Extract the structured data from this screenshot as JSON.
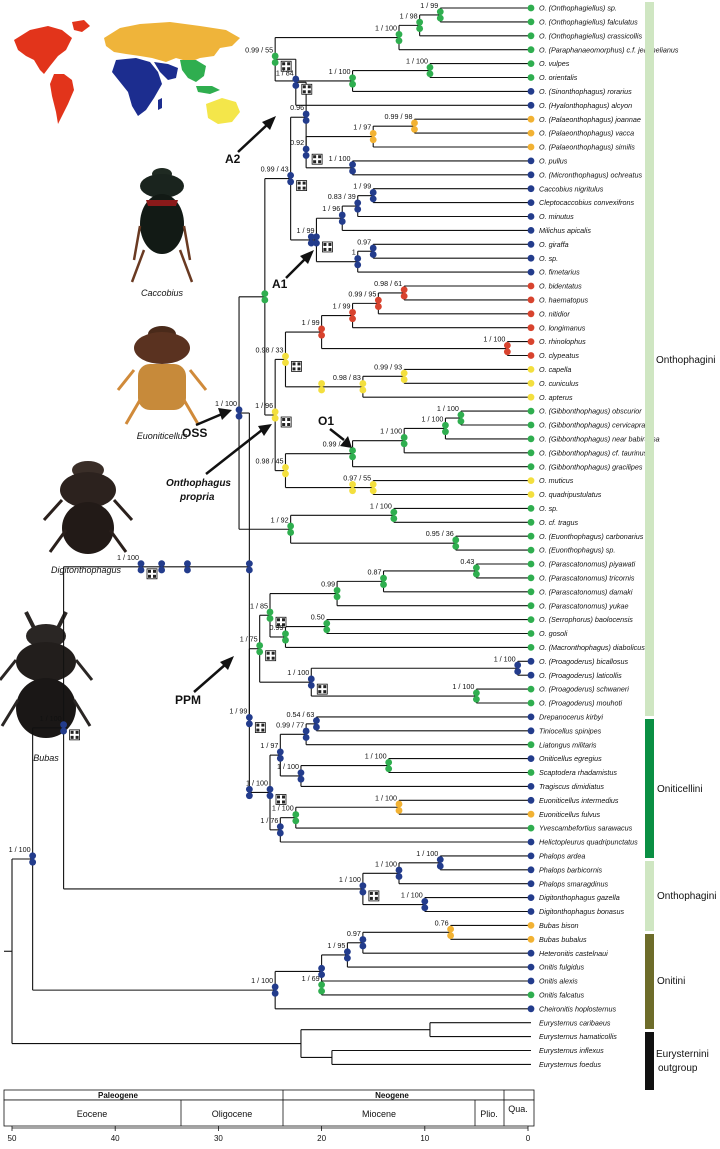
{
  "colors": {
    "blue": "#233c8c",
    "green": "#2fae4f",
    "red": "#d8432e",
    "yellow": "#f3df3e",
    "orange": "#f2b233",
    "onthophagini": "#cfe6c2",
    "oniticellini": "#0a8f43",
    "onitini": "#6d6c2a",
    "outgroup": "#111111",
    "map_red": "#e2341b",
    "map_orange": "#efb43a",
    "map_blue": "#1c2d8f",
    "map_yellow": "#f4e64a"
  },
  "taxa": [
    {
      "name": "O. (Onthophagiellus) sp.",
      "c": "green"
    },
    {
      "name": "O. (Onthophagiellus) falculatus",
      "c": "green"
    },
    {
      "name": "O. (Onthophagiellus) crassicollis",
      "c": "green"
    },
    {
      "name": "O. (Paraphanaeomorphus) c.f. jeannelianus",
      "c": "green"
    },
    {
      "name": "O. vulpes",
      "c": "green"
    },
    {
      "name": "O. orientalis",
      "c": "green"
    },
    {
      "name": "O. (Sinonthophagus) rorarius",
      "c": "blue"
    },
    {
      "name": "O. (Hyalonthophagus) alcyon",
      "c": "blue"
    },
    {
      "name": "O. (Palaeonthophagus) joannae",
      "c": "orange"
    },
    {
      "name": "O. (Palaeonthophagus) vacca",
      "c": "orange"
    },
    {
      "name": "O. (Palaeonthophagus) similis",
      "c": "orange"
    },
    {
      "name": "O. pullus",
      "c": "blue"
    },
    {
      "name": "O. (Micronthophagus) ochreatus",
      "c": "blue"
    },
    {
      "name": "Caccobius nigritulus",
      "c": "blue"
    },
    {
      "name": "Cleptocaccobius convexifrons",
      "c": "blue"
    },
    {
      "name": "O. minutus",
      "c": "blue"
    },
    {
      "name": "Milichus apicalis",
      "c": "blue"
    },
    {
      "name": "O. giraffa",
      "c": "blue"
    },
    {
      "name": "O. sp.",
      "c": "blue"
    },
    {
      "name": "O. fimetarius",
      "c": "blue"
    },
    {
      "name": "O. bidentatus",
      "c": "red"
    },
    {
      "name": "O. haematopus",
      "c": "red"
    },
    {
      "name": "O. nitidior",
      "c": "red"
    },
    {
      "name": "O. longimanus",
      "c": "red"
    },
    {
      "name": "O. rhinolophus",
      "c": "red"
    },
    {
      "name": "O. clypeatus",
      "c": "red"
    },
    {
      "name": "O. capella",
      "c": "yellow"
    },
    {
      "name": "O. cuniculus",
      "c": "yellow"
    },
    {
      "name": "O. apterus",
      "c": "yellow"
    },
    {
      "name": "O. (Gibbonthophagus) obscurior",
      "c": "green"
    },
    {
      "name": "O. (Gibbonthophagus) cervicapra",
      "c": "green"
    },
    {
      "name": "O. (Gibbonthophagus) near babirussa",
      "c": "green"
    },
    {
      "name": "O. (Gibbonthophagus) cf. taurinus",
      "c": "green"
    },
    {
      "name": "O. (Gibbonthophagus) gracilipes",
      "c": "green"
    },
    {
      "name": "O. muticus",
      "c": "yellow"
    },
    {
      "name": "O. quadripustulatus",
      "c": "yellow"
    },
    {
      "name": "O. sp.",
      "c": "green"
    },
    {
      "name": "O. cf. tragus",
      "c": "green"
    },
    {
      "name": "O. (Euonthophagus) carbonarius",
      "c": "green"
    },
    {
      "name": "O. (Euonthophagus) sp.",
      "c": "green"
    },
    {
      "name": "O. (Parascatonomus) piyawati",
      "c": "green"
    },
    {
      "name": "O. (Parascatonomus) tricornis",
      "c": "green"
    },
    {
      "name": "O. (Parascatonomus) damaki",
      "c": "green"
    },
    {
      "name": "O. (Parascatonomus) yukae",
      "c": "green"
    },
    {
      "name": "O. (Serrophorus) baolocensis",
      "c": "green"
    },
    {
      "name": "O. gosoli",
      "c": "green"
    },
    {
      "name": "O. (Macronthophagus) diabolicus",
      "c": "green"
    },
    {
      "name": "O. (Proagoderus) bicallosus",
      "c": "blue"
    },
    {
      "name": "O. (Proagoderus) laticollis",
      "c": "blue"
    },
    {
      "name": "O. (Proagoderus) schwaneri",
      "c": "green"
    },
    {
      "name": "O. (Proagoderus) mouhoti",
      "c": "green"
    },
    {
      "name": "Drepanocerus kirbyi",
      "c": "blue"
    },
    {
      "name": "Tiniocellus spinipes",
      "c": "blue"
    },
    {
      "name": "Liatongus militaris",
      "c": "green"
    },
    {
      "name": "Oniticellus egregius",
      "c": "blue"
    },
    {
      "name": "Scaptodera rhadamistus",
      "c": "green"
    },
    {
      "name": "Tragiscus dimidiatus",
      "c": "blue"
    },
    {
      "name": "Euoniticellus intermedius",
      "c": "blue"
    },
    {
      "name": "Euoniticellus fulvus",
      "c": "orange"
    },
    {
      "name": "Yvescambefortius sarawacus",
      "c": "green"
    },
    {
      "name": "Helictopleurus quadripunctatus",
      "c": "blue"
    },
    {
      "name": "Phalops ardea",
      "c": "blue"
    },
    {
      "name": "Phalops barbicornis",
      "c": "blue"
    },
    {
      "name": "Phalops smaragdinus",
      "c": "blue"
    },
    {
      "name": "Digitonthophagus gazella",
      "c": "blue"
    },
    {
      "name": "Digitonthophagus bonasus",
      "c": "blue"
    },
    {
      "name": "Bubas bison",
      "c": "orange"
    },
    {
      "name": "Bubas bubalus",
      "c": "orange"
    },
    {
      "name": "Heteronitis castelnaui",
      "c": "blue"
    },
    {
      "name": "Onitis fulgidus",
      "c": "blue"
    },
    {
      "name": "Onitis alexis",
      "c": "blue"
    },
    {
      "name": "Onitis falcatus",
      "c": "green"
    },
    {
      "name": "Cheironitis hoplosternus",
      "c": "blue"
    },
    {
      "name": "Eurysternus caribaeus",
      "c": "none"
    },
    {
      "name": "Eurysternus hamaticollis",
      "c": "none"
    },
    {
      "name": "Eurysternus inflexus",
      "c": "none"
    },
    {
      "name": "Eurysternus foedus",
      "c": "none"
    }
  ],
  "supports": [
    {
      "t": "1 / 99"
    },
    {
      "t": "1 / 98"
    },
    {
      "t": "1 / 100"
    },
    {
      "t": "1 / 100"
    },
    {
      "t": "1 / 100"
    },
    {
      "t": "0.99 / 55"
    },
    {
      "t": "1 / 84"
    },
    {
      "t": "0.96"
    },
    {
      "t": "0.99 / 98"
    },
    {
      "t": "1 / 97"
    },
    {
      "t": "0.92"
    },
    {
      "t": "1 / 100"
    },
    {
      "t": "0.99 / 43"
    },
    {
      "t": "1 / 99"
    },
    {
      "t": "0.83 / 39"
    },
    {
      "t": "1 / 96"
    },
    {
      "t": "1 / 99"
    },
    {
      "t": "0.97"
    },
    {
      "t": "1"
    },
    {
      "t": "0.98 / 61"
    },
    {
      "t": "0.99 / 95"
    },
    {
      "t": "1 / 99"
    },
    {
      "t": "1 / 99"
    },
    {
      "t": "1 / 100"
    },
    {
      "t": "0.98 / 33"
    },
    {
      "t": "0.99 / 93"
    },
    {
      "t": "0.98 / 83"
    },
    {
      "t": "1 / 69"
    },
    {
      "t": "1 / 100"
    },
    {
      "t": "1 / 100"
    },
    {
      "t": "1 / 100"
    },
    {
      "t": "0.99 / 95"
    },
    {
      "t": "0.98 / 45"
    },
    {
      "t": "0.97 / 55"
    },
    {
      "t": "1 / 96"
    },
    {
      "t": "1 / 100"
    },
    {
      "t": "1 / 92"
    },
    {
      "t": "0.95 / 36"
    },
    {
      "t": "0.43"
    },
    {
      "t": "0.87"
    },
    {
      "t": "0.99"
    },
    {
      "t": "1 / 85"
    },
    {
      "t": "0.50"
    },
    {
      "t": "0.99"
    },
    {
      "t": "1 / 75"
    },
    {
      "t": "1 / 100"
    },
    {
      "t": "1 / 100"
    },
    {
      "t": "1 / 100"
    },
    {
      "t": "1 / 99"
    },
    {
      "t": "1 / 100"
    },
    {
      "t": "0.54 / 63"
    },
    {
      "t": "0.99 / 77"
    },
    {
      "t": "1 / 97"
    },
    {
      "t": "1 / 100"
    },
    {
      "t": "1 / 100"
    },
    {
      "t": "1 / 100"
    },
    {
      "t": "1 / 100"
    },
    {
      "t": "1 / 100"
    },
    {
      "t": "1 / 76"
    },
    {
      "t": "1 / 100"
    },
    {
      "t": "1 / 100"
    },
    {
      "t": "1 / 100"
    },
    {
      "t": "1 / 100"
    },
    {
      "t": "1 / 100"
    },
    {
      "t": "0.76"
    },
    {
      "t": "0.97"
    },
    {
      "t": "1 / 95"
    },
    {
      "t": "1 / 69"
    },
    {
      "t": "1 / 100"
    },
    {
      "t": "1 / 100"
    },
    {
      "t": "1 / 100"
    }
  ],
  "labels": {
    "a2": "A2",
    "a1": "A1",
    "oss": "OSS",
    "o1": "O1",
    "propria_1": "Onthophagus",
    "propria_2": "propria",
    "ppm": "PPM"
  },
  "pictures": {
    "caccobius": "Caccobius",
    "euoniticellus": "Euoniticellus",
    "digitonthophagus": "Digitonthophagus",
    "bubas": "Bubas"
  },
  "tribes": {
    "onthophagini": "Onthophagini",
    "oniticellini": "Oniticellini",
    "onthophagini_2": "Onthophagini",
    "onitini": "Onitini",
    "outgroup_1": "Eurysternini",
    "outgroup_2": "outgroup"
  },
  "timescale": {
    "eras": [
      "Paleogene",
      "Neogene"
    ],
    "epochs": [
      "Eocene",
      "Oligocene",
      "Miocene",
      "Plio.",
      "Qua."
    ],
    "ticks": [
      "50",
      "40",
      "30",
      "20",
      "10",
      "0"
    ]
  }
}
